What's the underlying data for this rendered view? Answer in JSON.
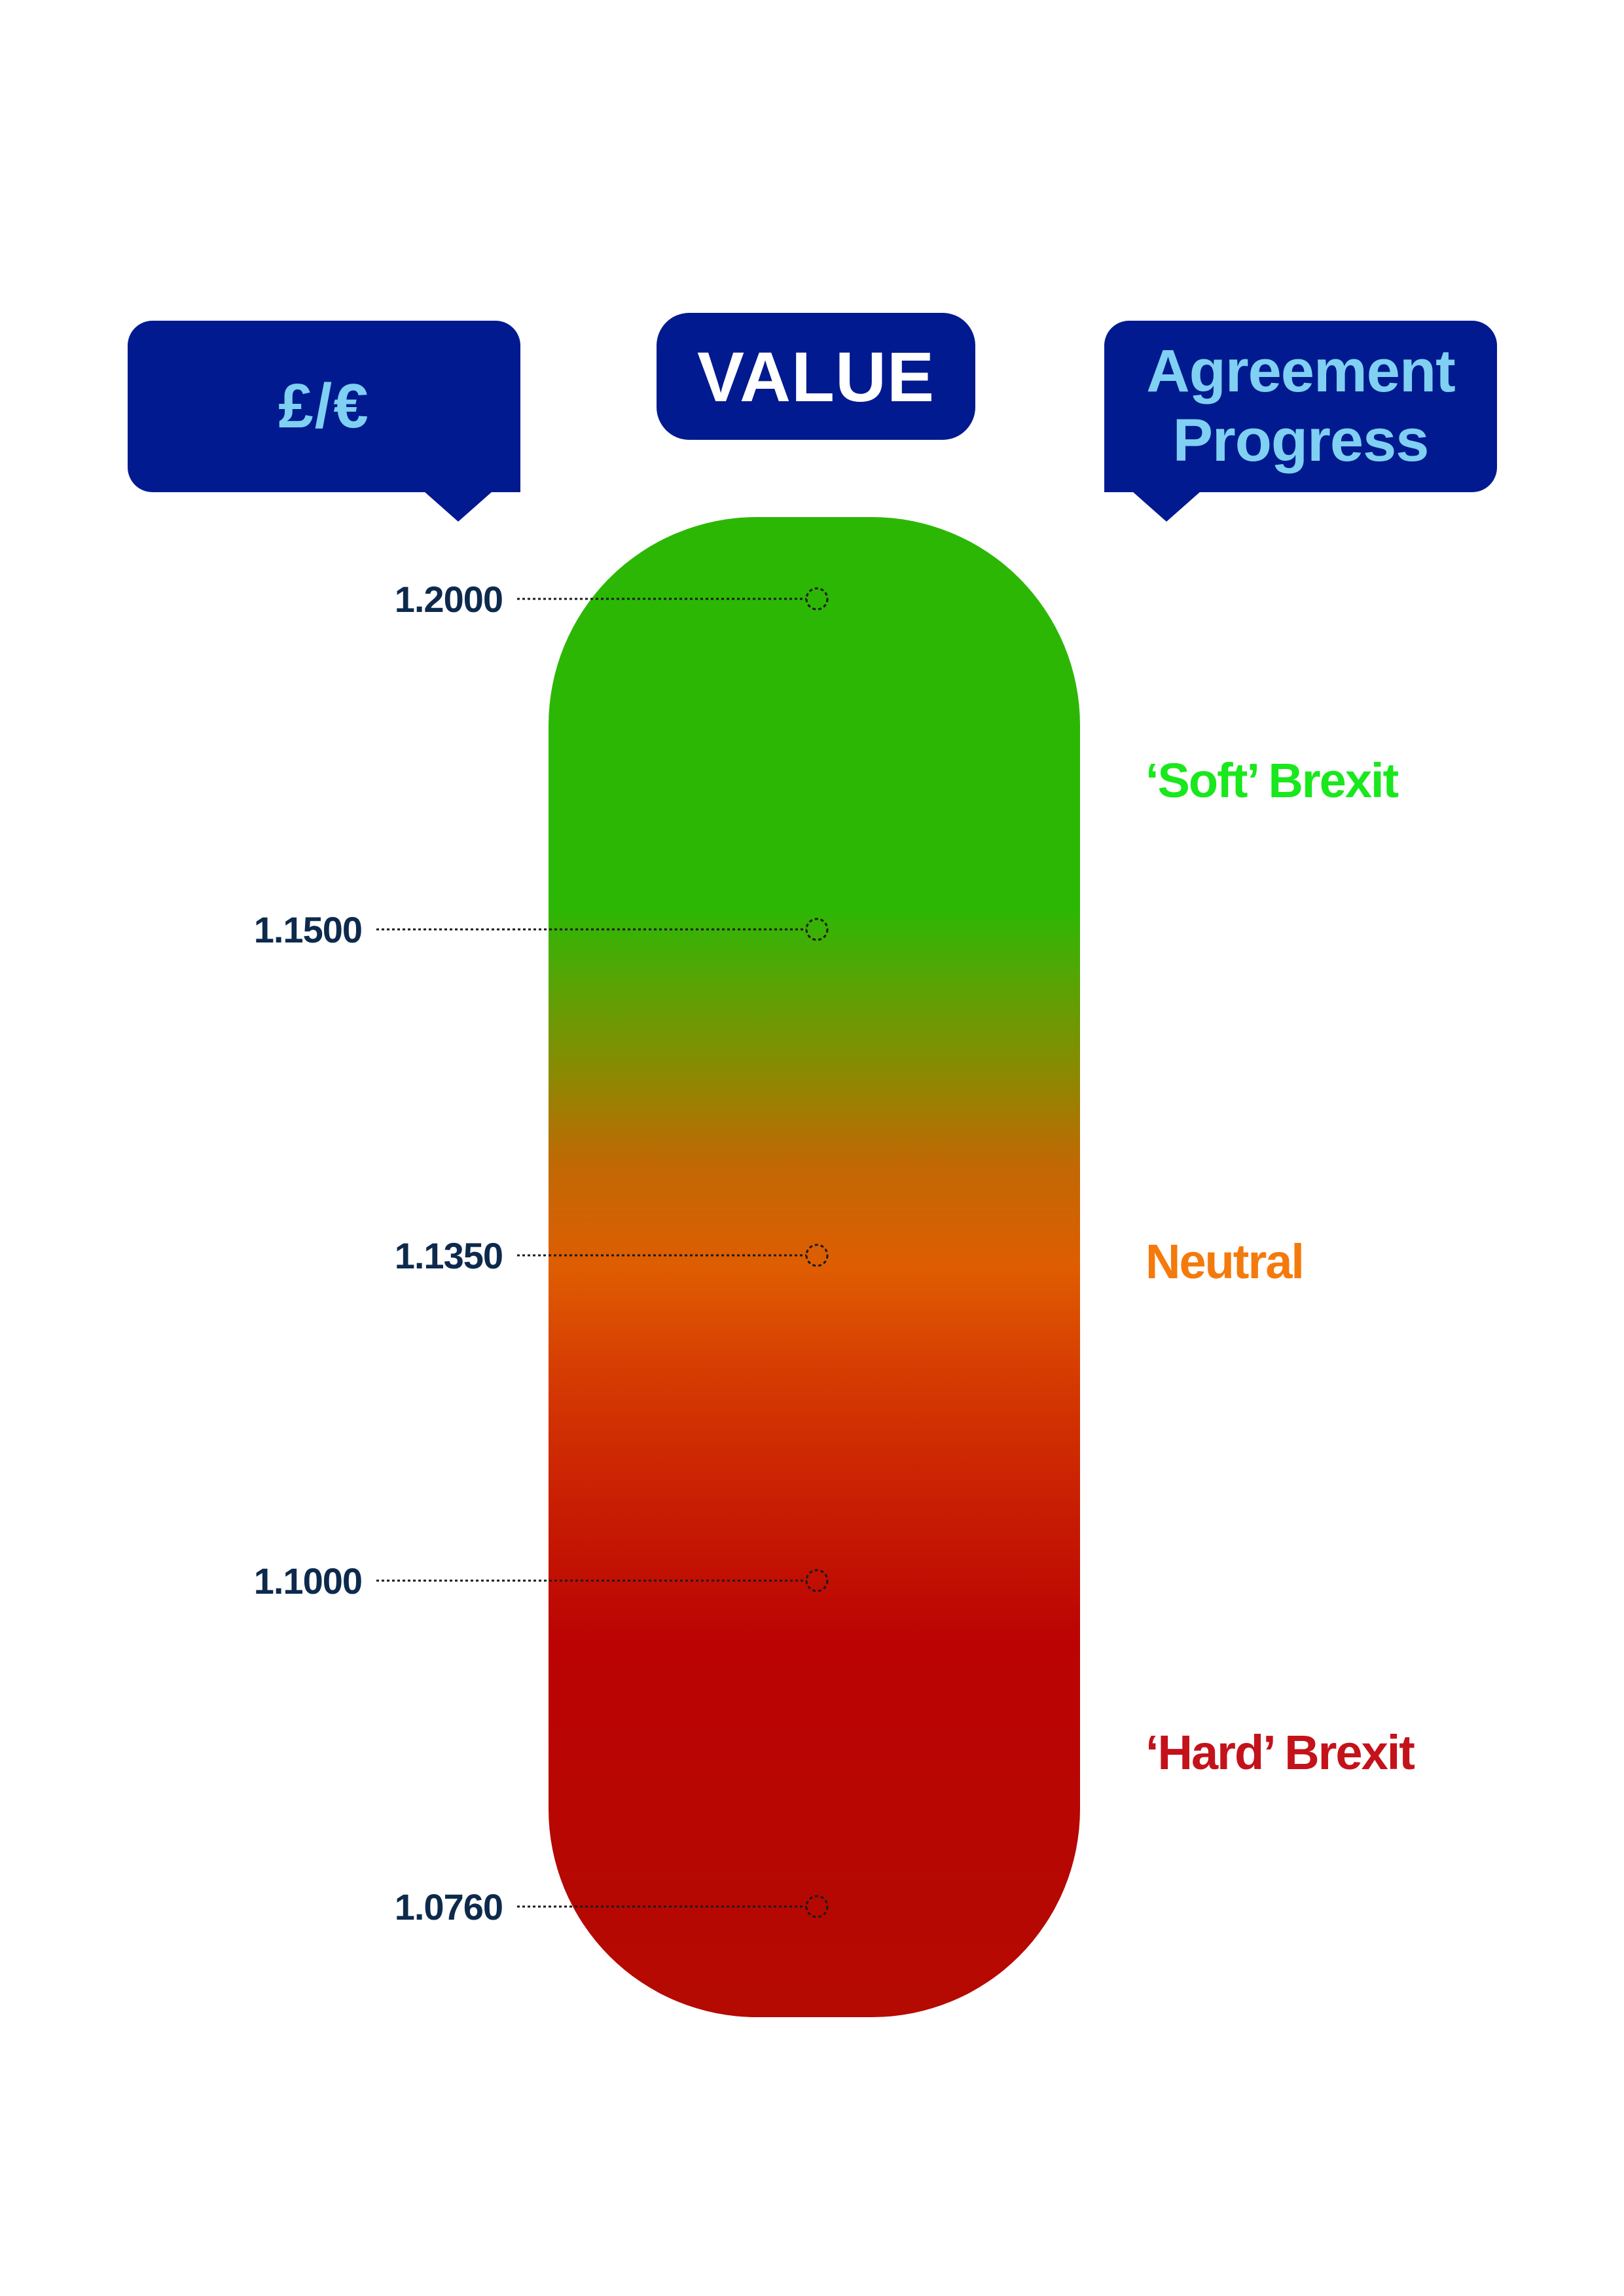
{
  "headers": {
    "left": "£/€",
    "center": "VALUE",
    "right": "Agreement Progress"
  },
  "chart_data": {
    "type": "gauge",
    "title": "VALUE",
    "axis_label": "£/€",
    "ylim": [
      1.076,
      1.2
    ],
    "ticks": [
      {
        "value": 1.2,
        "label": "1.2000"
      },
      {
        "value": 1.15,
        "label": "1.1500"
      },
      {
        "value": 1.135,
        "label": "1.1350"
      },
      {
        "value": 1.1,
        "label": "1.1000"
      },
      {
        "value": 1.076,
        "label": "1.0760"
      }
    ],
    "scale_label": "Agreement Progress",
    "zones": [
      {
        "label": "‘Soft’ Brexit",
        "color": "#18e81c"
      },
      {
        "label": "Neutral",
        "color": "#f47a0c"
      },
      {
        "label": "‘Hard’ Brexit",
        "color": "#c4121a"
      }
    ],
    "gradient_colors": {
      "top": "#2cb705",
      "middle": "#df5d02",
      "bottom": "#b40a02"
    }
  }
}
